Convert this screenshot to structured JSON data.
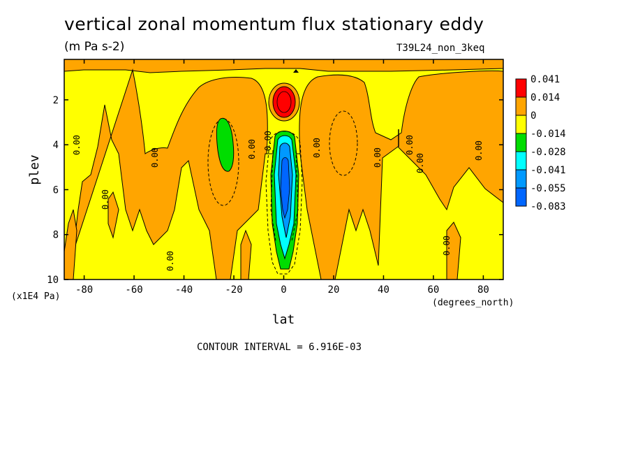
{
  "title": "vertical zonal momentum flux stationary eddy",
  "subtitle": "(m Pa s-2)",
  "run_name": "T39L24_non_3keq",
  "footer": "CONTOUR INTERVAL = 6.916E-03",
  "contour_label": "0.00",
  "colors": {
    "red": "#ff0000",
    "orange": "#ffa500",
    "yellow": "#ffff00",
    "green": "#00dd00",
    "cyan": "#00ffff",
    "blue": "#0099ff",
    "darkblue": "#0066ff"
  },
  "chart_data": {
    "type": "heatmap",
    "title": "vertical zonal momentum flux stationary eddy",
    "units": "(m Pa s-2)",
    "xlabel": "lat",
    "xunits": "(degrees_north)",
    "ylabel": "plev",
    "yunits": "(x1E4 Pa)",
    "x_ticks": [
      "-80",
      "-60",
      "-40",
      "-20",
      "0",
      "20",
      "40",
      "60",
      "80"
    ],
    "y_ticks": [
      "2",
      "4",
      "6",
      "8",
      "10"
    ],
    "xlim": [
      -88,
      88
    ],
    "ylim": [
      10,
      0.2
    ],
    "legend": {
      "labels": [
        "0.041",
        "0.014",
        "0",
        "-0.014",
        "-0.028",
        "-0.041",
        "-0.055",
        "-0.083"
      ],
      "colors": [
        "#ff0000",
        "#ffa500",
        "#ffff00",
        "#00dd00",
        "#00ffff",
        "#0099ff",
        "#0066ff"
      ],
      "placement": "right"
    },
    "contour_interval": "6.916E-03",
    "features": [
      {
        "kind": "max",
        "lat": 0,
        "plev": 2.0,
        "value": 0.041,
        "color": "red"
      },
      {
        "kind": "min",
        "lat": 0,
        "plev": 6.0,
        "value": -0.083,
        "color": "darkblue"
      },
      {
        "kind": "min",
        "lat": -25,
        "plev": 3.8,
        "value": -0.028,
        "color": "green"
      }
    ]
  }
}
